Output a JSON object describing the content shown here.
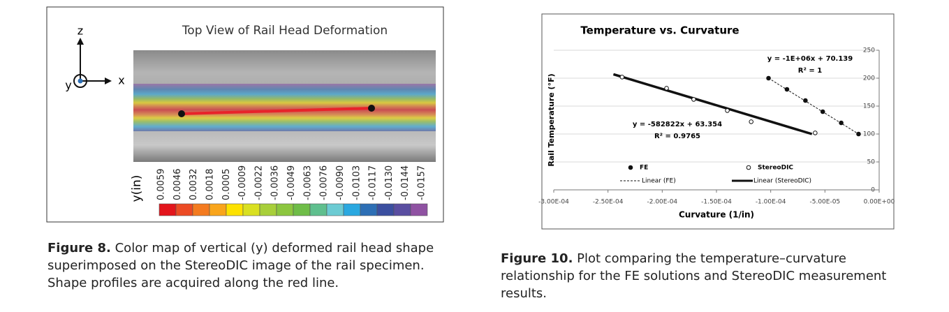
{
  "figure8": {
    "title": "Top View of Rail Head Deformation",
    "axes": {
      "z": "z",
      "y": "y",
      "x": "x"
    },
    "colorbar": {
      "label": "y(in)",
      "ticks": [
        "0.0059",
        "0.0046",
        "0.0032",
        "0.0018",
        "0.0005",
        "-0.0009",
        "-0.0022",
        "-0.0036",
        "-0.0049",
        "-0.0063",
        "-0.0076",
        "-0.0090",
        "-0.0103",
        "-0.0117",
        "-0.0130",
        "-0.0144",
        "-0.0157"
      ],
      "colors": [
        "#e3151c",
        "#ec4b24",
        "#f47b20",
        "#f9a51b",
        "#fde200",
        "#d9e021",
        "#a8cf3a",
        "#8cc63f",
        "#6fbd48",
        "#5fbf8e",
        "#6ccbd3",
        "#2aa8e0",
        "#2d6fb5",
        "#3b4fa0",
        "#5a4ea1",
        "#8f52a2"
      ]
    },
    "caption": {
      "label": "Figure 8.",
      "lines": [
        " Color map of vertical (y) deformed rail head shape",
        "superimposed on the StereoDIC image of the rail specimen.",
        "Shape profiles are acquired along the red line."
      ]
    }
  },
  "chart_data": {
    "type": "scatter",
    "title": "Temperature vs. Curvature",
    "x_label": "Curvature (1/in)",
    "y_label": "Rail Temperature (°F)",
    "xlim": [
      -0.0003,
      0
    ],
    "xticks": [
      {
        "value": -0.0003,
        "label": "-3.00E-04"
      },
      {
        "value": -0.00025,
        "label": "-2.50E-04"
      },
      {
        "value": -0.0002,
        "label": "-2.00E-04"
      },
      {
        "value": -0.00015,
        "label": "-1.50E-04"
      },
      {
        "value": -0.0001,
        "label": "-1.00E-04"
      },
      {
        "value": -5e-05,
        "label": "-5.00E-05"
      },
      {
        "value": 0,
        "label": "0.00E+00"
      }
    ],
    "ylim": [
      0,
      250
    ],
    "yticks": [
      0,
      50,
      100,
      150,
      200,
      250
    ],
    "grid": true,
    "series": [
      {
        "name": "FE",
        "color": "#111111",
        "marker": "filled",
        "x": [
          -0.000102,
          -8.5e-05,
          -6.8e-05,
          -5.2e-05,
          -3.5e-05,
          -1.9e-05
        ],
        "values": [
          200,
          180,
          160,
          140,
          120,
          100
        ]
      },
      {
        "name": "StereoDIC",
        "color": "#111111",
        "marker": "open",
        "x": [
          -0.000237,
          -0.000196,
          -0.000171,
          -0.00014,
          -0.000118,
          -5.9e-05
        ],
        "values": [
          202,
          182,
          162,
          142,
          122,
          102
        ]
      }
    ],
    "trendlines": [
      {
        "name": "Linear (FE)",
        "style": "dashed",
        "x": [
          -0.000102,
          -1.9e-05
        ],
        "values": [
          200,
          100
        ]
      },
      {
        "name": "Linear (StereoDIC)",
        "style": "thick",
        "x": [
          -0.000245,
          -6.2e-05
        ],
        "values": [
          207,
          100
        ]
      }
    ],
    "annotations": [
      "y = -1E+06x + 70.139",
      "R² = 1",
      "y = -582822x + 63.354",
      "R² = 0.9765"
    ]
  },
  "figure10_caption": {
    "label": "Figure 10.",
    "lines": [
      " Plot comparing the temperature–curvature",
      "relationship for the FE solutions and StereoDIC measurement",
      "results."
    ]
  }
}
